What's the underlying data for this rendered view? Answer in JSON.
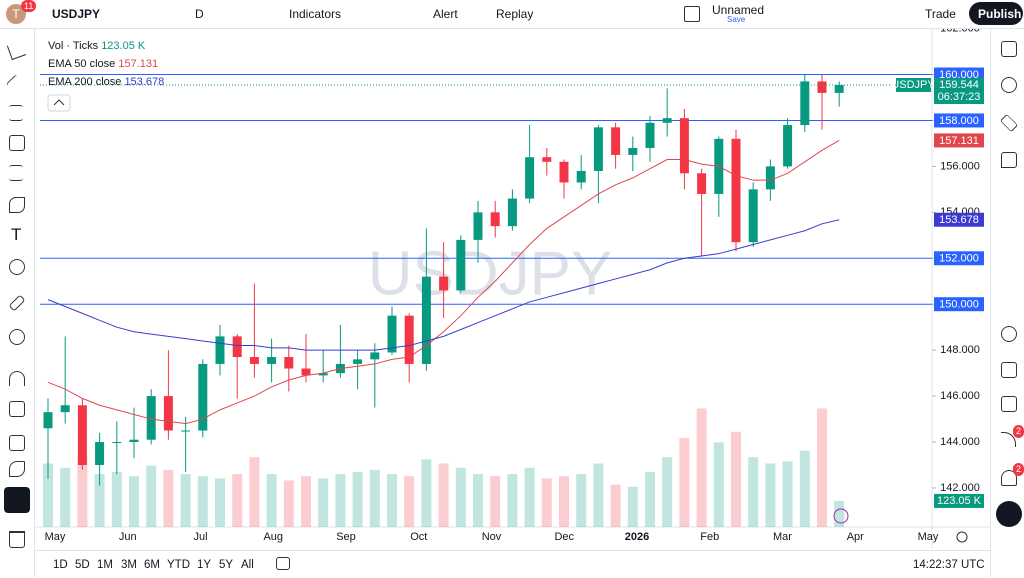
{
  "toolbar": {
    "avatar": "T",
    "badge": "11",
    "symbol": "USDJPY",
    "interval": "D",
    "indicators": "Indicators",
    "alert": "Alert",
    "replay": "Replay",
    "layout_name": "Unnamed",
    "save": "Save",
    "trade": "Trade",
    "publish": "Publish"
  },
  "sidebar": {
    "badge_ideas": "2",
    "badge_alerts": "2"
  },
  "bottom_bar": {
    "ranges": [
      "1D",
      "5D",
      "1M",
      "3M",
      "6M",
      "YTD",
      "1Y",
      "5Y",
      "All"
    ],
    "clock": "14:22:37 UTC"
  },
  "chart_data": {
    "type": "candlestick",
    "watermark": "USDJPY",
    "months": [
      "May",
      "Jun",
      "Jul",
      "Aug",
      "Sep",
      "Oct",
      "Nov",
      "Dec",
      "2026",
      "Feb",
      "Mar",
      "Apr",
      "May"
    ],
    "candles": {
      "open": [
        144.6,
        145.3,
        145.6,
        143.0,
        144.0,
        144.0,
        144.1,
        146.0,
        144.5,
        144.5,
        147.4,
        148.6,
        147.7,
        147.4,
        147.7,
        147.2,
        146.9,
        147.0,
        147.4,
        147.6,
        147.9,
        149.5,
        147.4,
        151.2,
        150.6,
        152.8,
        154.0,
        153.4,
        154.6,
        156.4,
        156.2,
        155.3,
        155.8,
        157.7,
        156.5,
        156.8,
        157.9,
        158.1,
        155.7,
        154.8,
        157.2,
        152.7,
        155.0,
        156.0,
        157.8,
        159.7,
        159.2
      ],
      "high": [
        145.9,
        148.6,
        145.9,
        144.4,
        144.9,
        145.5,
        146.3,
        148.0,
        145.1,
        147.6,
        149.1,
        148.7,
        150.9,
        148.5,
        148.2,
        148.7,
        148.0,
        149.1,
        148.0,
        148.3,
        149.9,
        149.6,
        153.3,
        152.7,
        153.0,
        154.5,
        154.5,
        155.0,
        157.8,
        156.8,
        156.3,
        156.5,
        157.8,
        157.9,
        157.3,
        158.2,
        159.4,
        158.5,
        155.9,
        157.3,
        157.6,
        155.3,
        156.3,
        158.1,
        160.0,
        160.0,
        159.7
      ],
      "low": [
        142.4,
        144.8,
        142.8,
        142.1,
        142.6,
        143.3,
        143.9,
        144.1,
        142.7,
        144.2,
        146.9,
        145.9,
        146.8,
        146.6,
        146.2,
        146.6,
        146.6,
        146.8,
        146.3,
        145.5,
        147.8,
        146.6,
        147.1,
        149.4,
        150.5,
        151.8,
        152.9,
        153.2,
        154.4,
        155.6,
        154.6,
        155.0,
        154.4,
        155.9,
        155.8,
        156.2,
        157.3,
        155.0,
        152.1,
        153.8,
        152.3,
        152.5,
        154.5,
        155.9,
        157.5,
        157.6,
        158.6
      ],
      "close": [
        145.3,
        145.6,
        143.0,
        144.0,
        144.0,
        144.1,
        146.0,
        144.5,
        144.5,
        147.4,
        148.6,
        147.7,
        147.4,
        147.7,
        147.2,
        146.9,
        147.0,
        147.4,
        147.6,
        147.9,
        149.5,
        147.4,
        151.2,
        150.6,
        152.8,
        154.0,
        153.4,
        154.6,
        156.4,
        156.2,
        155.3,
        155.8,
        157.7,
        156.5,
        156.8,
        157.9,
        158.1,
        155.7,
        154.8,
        157.2,
        152.7,
        155.0,
        156.0,
        157.8,
        159.7,
        159.2,
        159.544
      ]
    },
    "up_color": "#089981",
    "down_color": "#f23645",
    "series": [
      {
        "name": "EMA 50 close",
        "color": "#e0474c",
        "values": [
          146.6,
          146.3,
          145.9,
          145.6,
          145.4,
          145.2,
          145.0,
          144.9,
          144.8,
          145.0,
          145.4,
          145.7,
          146.0,
          146.4,
          146.7,
          146.9,
          147.0,
          147.2,
          147.3,
          147.4,
          147.6,
          147.7,
          148.2,
          148.8,
          149.5,
          150.3,
          151.0,
          151.8,
          152.6,
          153.3,
          153.8,
          154.3,
          154.8,
          155.2,
          155.5,
          155.9,
          156.3,
          156.3,
          156.1,
          156.0,
          155.6,
          155.4,
          155.4,
          155.7,
          156.2,
          156.7,
          157.131
        ]
      },
      {
        "name": "EMA 200 close",
        "color": "#3b3bd0",
        "values": [
          150.2,
          149.9,
          149.6,
          149.3,
          149.0,
          148.8,
          148.7,
          148.6,
          148.5,
          148.4,
          148.3,
          148.2,
          148.2,
          148.1,
          148.1,
          148.0,
          148.0,
          148.0,
          148.0,
          148.0,
          148.1,
          148.2,
          148.4,
          148.6,
          148.9,
          149.2,
          149.5,
          149.8,
          150.1,
          150.3,
          150.5,
          150.7,
          150.9,
          151.1,
          151.3,
          151.5,
          151.8,
          152.0,
          152.1,
          152.2,
          152.4,
          152.6,
          152.8,
          153.0,
          153.2,
          153.5,
          153.678
        ]
      }
    ],
    "volume": {
      "name": "Vol · Ticks",
      "values": [
        300,
        280,
        330,
        250,
        260,
        240,
        290,
        270,
        250,
        240,
        230,
        250,
        330,
        250,
        220,
        240,
        230,
        250,
        260,
        270,
        250,
        240,
        320,
        300,
        280,
        250,
        240,
        250,
        280,
        230,
        240,
        250,
        300,
        200,
        190,
        260,
        330,
        420,
        560,
        400,
        450,
        330,
        300,
        310,
        360,
        560,
        123.05
      ],
      "value_labels": {
        "46": "123.05 K"
      },
      "ylim": [
        0,
        600
      ]
    },
    "countdown": "06:37:23",
    "hlines": [
      {
        "value": 160,
        "label": "160.000"
      },
      {
        "value": 158,
        "label": "158.000"
      },
      {
        "value": 152,
        "label": "152.000"
      },
      {
        "value": 150,
        "label": "150.000"
      }
    ],
    "ylim": [
      140.3,
      162.2
    ],
    "yticks": [
      {
        "value": 142,
        "label": "142.000"
      },
      {
        "value": 144,
        "label": "144.000"
      },
      {
        "value": 146,
        "label": "146.000"
      },
      {
        "value": 148,
        "label": "148.000"
      },
      {
        "value": 150,
        "label": "150.000"
      },
      {
        "value": 152,
        "label": "152.000"
      },
      {
        "value": 154,
        "label": "154.000"
      },
      {
        "value": 156,
        "label": "156.000"
      },
      {
        "value": 158,
        "label": "158.000"
      },
      {
        "value": 160,
        "label": "160.000"
      },
      {
        "value": 162,
        "label": "162.000"
      }
    ],
    "grid": false
  }
}
